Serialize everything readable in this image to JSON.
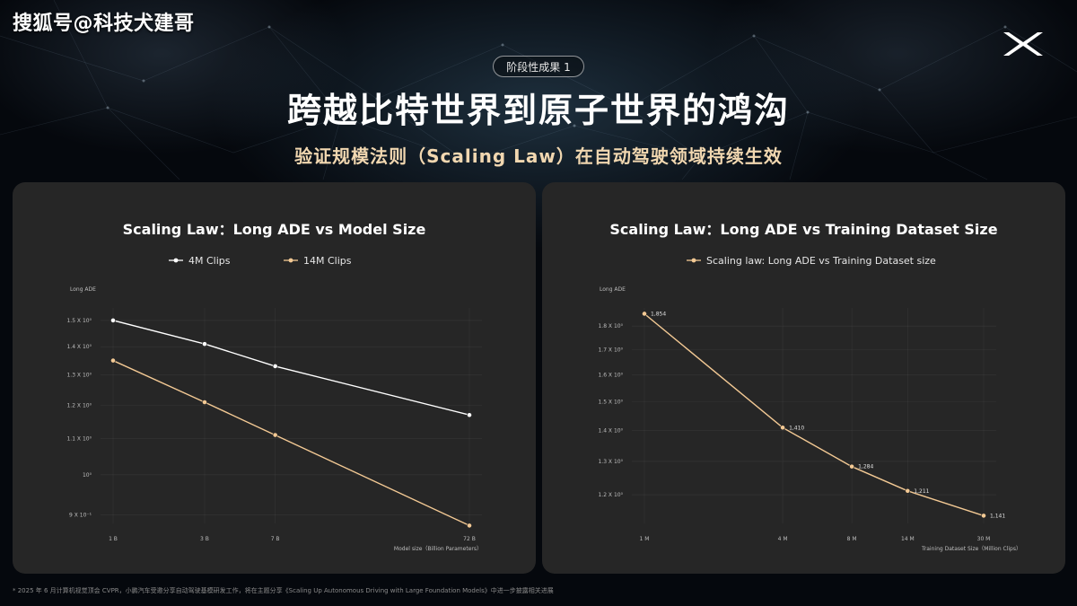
{
  "watermark": "搜狐号@科技犬建哥",
  "header": {
    "tag": "阶段性成果 1",
    "title": "跨越比特世界到原子世界的鸿沟",
    "subtitle": "验证规模法则（Scaling Law）在自动驾驶领域持续生效"
  },
  "footnote": "* 2025 年 6 月计算机视觉顶会 CVPR，小鹏汽车受邀分享自动驾驶基模研发工作，将在主题分享《Scaling Up Autonomous Driving with Large Foundation Models》中进一步披露相关进展",
  "colors": {
    "white_series": "#ffffff",
    "gold_series": "#f3c994",
    "panel": "#262626",
    "subtitle": "#f1d7b0"
  },
  "chart_data": [
    {
      "type": "line",
      "title": "Scaling Law：Long ADE vs Model Size",
      "xlabel": "Model size（Billion Parameters）",
      "ylabel": "Long ADE",
      "x_scale": "log",
      "y_scale": "log",
      "categories": [
        "1 B",
        "3 B",
        "7 B",
        "72 B"
      ],
      "x": [
        1,
        3,
        7,
        72
      ],
      "xlim": [
        1,
        72
      ],
      "yticks": [
        {
          "label": "1.5 X 10⁰",
          "value": 1.5
        },
        {
          "label": "1.4 X 10⁰",
          "value": 1.4
        },
        {
          "label": "1.3 X 10⁰",
          "value": 1.3
        },
        {
          "label": "1.2 X 10⁰",
          "value": 1.2
        },
        {
          "label": "1.1 X 10⁰",
          "value": 1.1
        },
        {
          "label": "10⁰",
          "value": 1.0
        },
        {
          "label": "9 X 10⁻¹",
          "value": 0.9
        }
      ],
      "ylim": [
        0.88,
        1.55
      ],
      "grid": true,
      "legend": "top",
      "series": [
        {
          "name": "4M Clips",
          "color": "#ffffff",
          "values": [
            1.5,
            1.41,
            1.33,
            1.17
          ]
        },
        {
          "name": "14M Clips",
          "color": "#f3c994",
          "values": [
            1.35,
            1.21,
            1.11,
            0.875
          ]
        }
      ]
    },
    {
      "type": "line",
      "title": "Scaling Law：Long ADE vs Training Dataset Size",
      "xlabel": "Training Dataset Size（Million Clips）",
      "ylabel": "Long ADE",
      "x_scale": "log",
      "y_scale": "log",
      "categories": [
        "1 M",
        "4 M",
        "8 M",
        "14 M",
        "30 M"
      ],
      "x": [
        1,
        4,
        8,
        14,
        30
      ],
      "xlim": [
        1,
        30
      ],
      "yticks": [
        {
          "label": "1.8 X 10⁰",
          "value": 1.8
        },
        {
          "label": "1.7 X 10⁰",
          "value": 1.7
        },
        {
          "label": "1.6 X 10⁰",
          "value": 1.6
        },
        {
          "label": "1.5 X 10⁰",
          "value": 1.5
        },
        {
          "label": "1.4 X 10⁰",
          "value": 1.4
        },
        {
          "label": "1.3 X 10⁰",
          "value": 1.3
        },
        {
          "label": "1.2 X 10⁰",
          "value": 1.2
        }
      ],
      "ylim": [
        1.12,
        1.88
      ],
      "grid": true,
      "legend": "top",
      "series": [
        {
          "name": "Scaling law: Long ADE vs Training Dataset size",
          "color": "#f3c994",
          "values": [
            1.854,
            1.41,
            1.284,
            1.211,
            1.141
          ],
          "labels": [
            "1,854",
            "1,410",
            "1,284",
            "1,211",
            "1,141"
          ]
        }
      ]
    }
  ]
}
